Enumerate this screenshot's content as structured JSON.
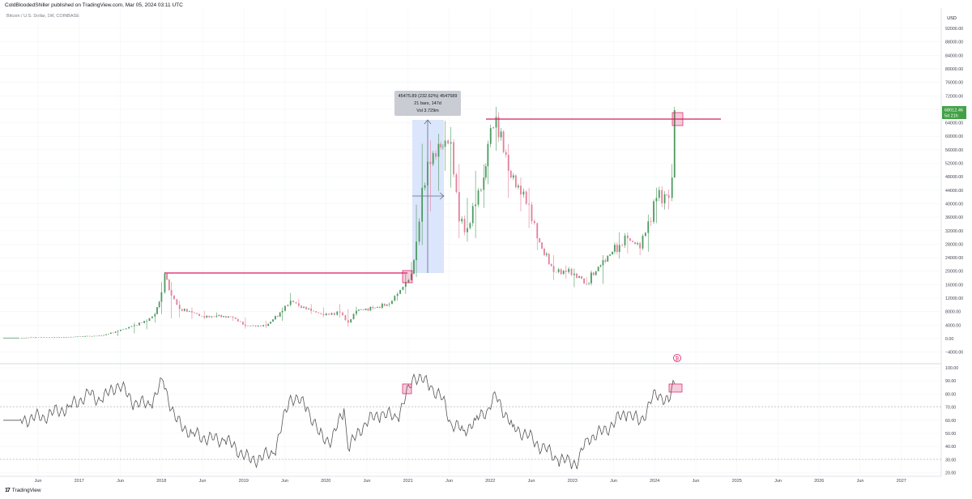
{
  "header": {
    "published_by": "ColdBloodedShiller published on TradingView.com, Mar 05, 2024 03:11 UTC",
    "symbol": "Bitcoin / U.S. Dollar, 1W, COINBASE"
  },
  "footer": {
    "logo_mark": "17",
    "brand": "TradingView"
  },
  "colors": {
    "candle_up": "#4c9a5f",
    "candle_down": "#e37f9a",
    "level_line": "#d81b60",
    "range_fill": "#dbe5fb",
    "price_tag": "#43a047",
    "rsi_line": "#555555",
    "grid": "#f2f3f5"
  },
  "price_axis": {
    "unit": "USD",
    "ticks": [
      "92000.00",
      "88000.00",
      "84000.00",
      "80000.00",
      "76000.00",
      "72000.00",
      "68000.00",
      "64000.00",
      "60000.00",
      "56000.00",
      "52000.00",
      "48000.00",
      "44000.00",
      "40000.00",
      "36000.00",
      "32000.00",
      "28000.00",
      "24000.00",
      "20000.00",
      "16000.00",
      "12000.00",
      "8000.00",
      "4000.00",
      "0.00",
      "−4000.00"
    ],
    "last_price_label": "68012.46",
    "countdown_label": "5d 21h"
  },
  "rsi_axis": {
    "ticks": [
      "100.00",
      "90.00",
      "80.00",
      "70.00",
      "60.00",
      "50.00",
      "40.00",
      "30.00",
      "20.00"
    ]
  },
  "time_axis": {
    "ticks": [
      "Jun",
      "2017",
      "Jun",
      "2018",
      "Jun",
      "2019",
      "Jun",
      "2020",
      "Jun",
      "2021",
      "Jun",
      "2022",
      "Jun",
      "2023",
      "Jun",
      "2024",
      "Jun",
      "2025",
      "Jun",
      "2026",
      "Jun",
      "2027"
    ]
  },
  "measure_box": {
    "line1": "45475.89 (232.62%) 4547589",
    "line2": "21 bars, 147d",
    "line3": "Vol 3.729m"
  },
  "chart_data": [
    {
      "type": "candlestick",
      "title": "Bitcoin / U.S. Dollar, 1W, COINBASE",
      "ylabel": "USD",
      "ylim": [
        -4000,
        92000
      ],
      "x_range": [
        "2016-03",
        "2027-08"
      ],
      "series": [
        {
          "t": [
            2016.2,
            2016.4,
            2016.6,
            2016.8,
            2017.0,
            2017.2,
            2017.4,
            2017.6,
            2017.75,
            2017.85,
            2017.93,
            2017.97,
            2018.05,
            2018.15,
            2018.3,
            2018.45,
            2018.6,
            2018.8,
            2018.95,
            2019.2,
            2019.4,
            2019.5,
            2019.6,
            2019.75,
            2019.9,
            2020.1,
            2020.2,
            2020.3,
            2020.5,
            2020.7,
            2020.8,
            2020.9,
            2020.97,
            2021.03,
            2021.1,
            2021.2,
            2021.3,
            2021.38,
            2021.45,
            2021.55,
            2021.65,
            2021.75,
            2021.85,
            2021.9,
            2022.0,
            2022.15,
            2022.3,
            2022.4,
            2022.5,
            2022.7,
            2022.85,
            2022.95,
            2023.1,
            2023.3,
            2023.5,
            2023.6,
            2023.75,
            2023.85,
            2023.95,
            2024.05,
            2024.1,
            2024.14,
            2024.17
          ],
          "close": [
            420,
            650,
            600,
            700,
            950,
            1100,
            2500,
            4200,
            5500,
            7500,
            14000,
            19500,
            13000,
            9000,
            8000,
            6500,
            7000,
            6500,
            4000,
            4000,
            8500,
            11500,
            10000,
            8500,
            7200,
            8000,
            5000,
            8500,
            9300,
            10500,
            13500,
            17000,
            19500,
            29000,
            45000,
            52000,
            58000,
            59000,
            58500,
            35000,
            33000,
            40000,
            48000,
            58000,
            66000,
            50000,
            43000,
            40000,
            30000,
            20000,
            20000,
            19500,
            16500,
            23500,
            28000,
            30000,
            27000,
            35000,
            42000,
            43000,
            42000,
            48000,
            68000
          ],
          "high": [
            460,
            680,
            720,
            760,
            1100,
            1300,
            2800,
            5000,
            6000,
            8000,
            17000,
            20000,
            17000,
            11500,
            9500,
            8500,
            8000,
            7000,
            6500,
            5500,
            9500,
            13800,
            12000,
            10500,
            9500,
            10500,
            9000,
            9700,
            10000,
            11000,
            14000,
            19500,
            23000,
            40000,
            58000,
            59000,
            61000,
            64800,
            63000,
            52000,
            42000,
            50000,
            52000,
            59000,
            69000,
            58000,
            48000,
            45000,
            32000,
            25000,
            22000,
            21000,
            18500,
            25000,
            31800,
            31800,
            29000,
            37000,
            45000,
            44000,
            44500,
            52000,
            69000
          ],
          "low": [
            380,
            420,
            560,
            580,
            720,
            900,
            1000,
            1800,
            3000,
            5000,
            7500,
            13500,
            6200,
            6500,
            6000,
            6000,
            6500,
            5500,
            3200,
            3400,
            5500,
            9800,
            9500,
            7500,
            6600,
            6500,
            3800,
            7000,
            8800,
            9700,
            11500,
            13500,
            17500,
            18500,
            28000,
            38000,
            44000,
            50000,
            45000,
            30000,
            29000,
            30000,
            39000,
            46000,
            56000,
            42000,
            38000,
            33000,
            26500,
            17600,
            18000,
            15500,
            16000,
            16500,
            24000,
            25500,
            25000,
            26000,
            34500,
            38500,
            38600,
            41000,
            50000
          ]
        }
      ]
    },
    {
      "type": "line",
      "title": "",
      "ylabel": "",
      "ylim": [
        18,
        102
      ],
      "reference_lines": [
        70,
        30
      ],
      "series": [
        {
          "x": [
            2016.2,
            2016.5,
            2016.8,
            2017.05,
            2017.2,
            2017.4,
            2017.6,
            2017.8,
            2017.95,
            2018.1,
            2018.3,
            2018.5,
            2018.7,
            2018.95,
            2019.0,
            2019.3,
            2019.5,
            2019.7,
            2019.85,
            2020.0,
            2020.15,
            2020.2,
            2020.4,
            2020.6,
            2020.8,
            2020.95,
            2021.0,
            2021.2,
            2021.35,
            2021.45,
            2021.6,
            2021.75,
            2021.9,
            2022.0,
            2022.2,
            2022.4,
            2022.45,
            2022.6,
            2022.75,
            2022.9,
            2023.0,
            2023.1,
            2023.3,
            2023.5,
            2023.6,
            2023.75,
            2023.9,
            2024.0,
            2024.1,
            2024.17
          ],
          "y": [
            60,
            63,
            70,
            80,
            75,
            88,
            73,
            72,
            90,
            60,
            50,
            46,
            45,
            33,
            29,
            35,
            79,
            70,
            49,
            44,
            69,
            38,
            58,
            65,
            62,
            85,
            95,
            86,
            76,
            58,
            52,
            60,
            69,
            78,
            55,
            48,
            44,
            38,
            30,
            28,
            28,
            46,
            51,
            62,
            66,
            58,
            77,
            80,
            74,
            88
          ]
        }
      ]
    }
  ]
}
